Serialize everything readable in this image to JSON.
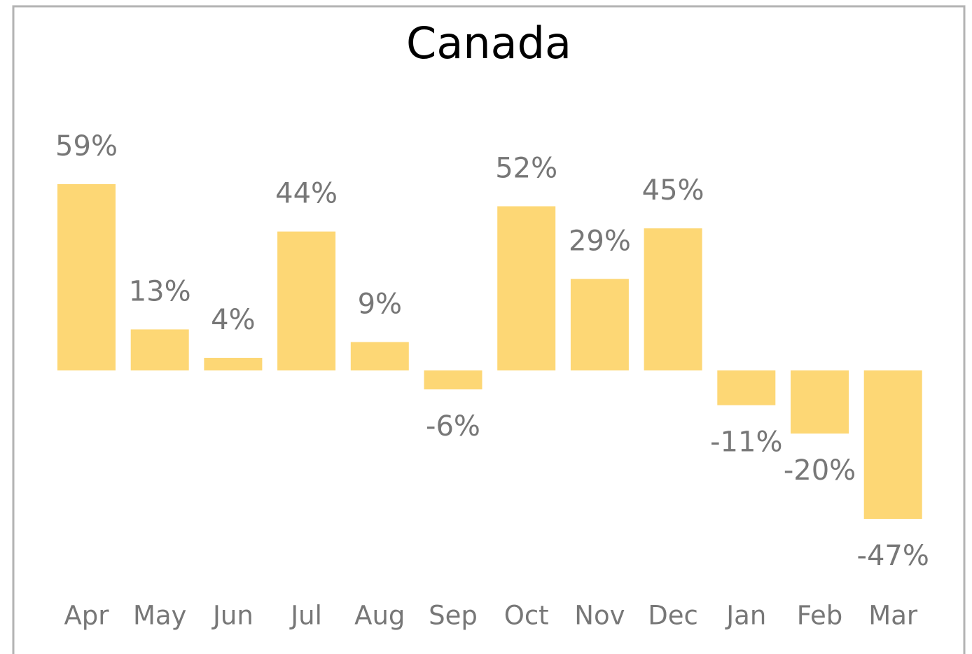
{
  "chart_data": {
    "type": "bar",
    "title": "Canada",
    "categories": [
      "Apr",
      "May",
      "Jun",
      "Jul",
      "Aug",
      "Sep",
      "Oct",
      "Nov",
      "Dec",
      "Jan",
      "Feb",
      "Mar"
    ],
    "values": [
      59,
      13,
      4,
      44,
      9,
      -6,
      52,
      29,
      45,
      -11,
      -20,
      -47
    ],
    "value_labels": [
      "59%",
      "13%",
      "4%",
      "44%",
      "9%",
      "-6%",
      "52%",
      "29%",
      "45%",
      "-11%",
      "-20%",
      "-47%"
    ],
    "color": "#fdd775",
    "grid": false
  }
}
